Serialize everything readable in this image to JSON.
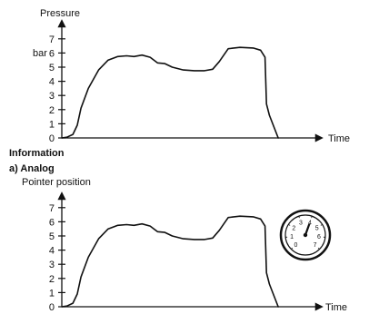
{
  "section_title": "Information",
  "section_subtitle": "a) Analog",
  "gauge": {
    "numbers": [
      "0",
      "1",
      "2",
      "3",
      "4",
      "5",
      "6",
      "7"
    ],
    "value": 4.0
  },
  "chart_data": [
    {
      "type": "line",
      "ylabel": "Pressure",
      "yunit": "bar",
      "xlabel": "Time",
      "ylim": [
        0,
        7.5
      ],
      "yticks": [
        0,
        1,
        2,
        3,
        4,
        5,
        6,
        7
      ],
      "series": [
        {
          "x": [
            0,
            0.7,
            1.5,
            2.1,
            2.6,
            3.6,
            5,
            6.3,
            7.6,
            8.8,
            9.8,
            10.9,
            12,
            13,
            14,
            15,
            16.5,
            18,
            19.4,
            20.5,
            21.4,
            22.6,
            24.2,
            26,
            27,
            27.6,
            27.8,
            28.2,
            29.4
          ],
          "y": [
            0,
            0.05,
            0.25,
            0.9,
            2.1,
            3.5,
            4.8,
            5.5,
            5.75,
            5.8,
            5.75,
            5.85,
            5.7,
            5.3,
            5.25,
            5.0,
            4.8,
            4.75,
            4.75,
            4.85,
            5.4,
            6.3,
            6.4,
            6.35,
            6.2,
            5.7,
            2.4,
            1.6,
            0
          ]
        }
      ]
    },
    {
      "type": "line",
      "ylabel": "Pointer position",
      "xlabel": "Time",
      "ylim": [
        0,
        7.5
      ],
      "yticks": [
        0,
        1,
        2,
        3,
        4,
        5,
        6,
        7
      ],
      "series": [
        {
          "x": [
            0,
            0.7,
            1.5,
            2.1,
            2.6,
            3.6,
            5,
            6.3,
            7.6,
            8.8,
            9.8,
            10.9,
            12,
            13,
            14,
            15,
            16.5,
            18,
            19.4,
            20.5,
            21.4,
            22.6,
            24.2,
            26,
            27,
            27.6,
            27.8,
            28.2,
            29.4
          ],
          "y": [
            0,
            0.05,
            0.25,
            0.9,
            2.1,
            3.5,
            4.8,
            5.5,
            5.75,
            5.8,
            5.75,
            5.85,
            5.7,
            5.3,
            5.25,
            5.0,
            4.8,
            4.75,
            4.75,
            4.85,
            5.4,
            6.3,
            6.4,
            6.35,
            6.2,
            5.7,
            2.4,
            1.6,
            0
          ]
        }
      ]
    }
  ]
}
